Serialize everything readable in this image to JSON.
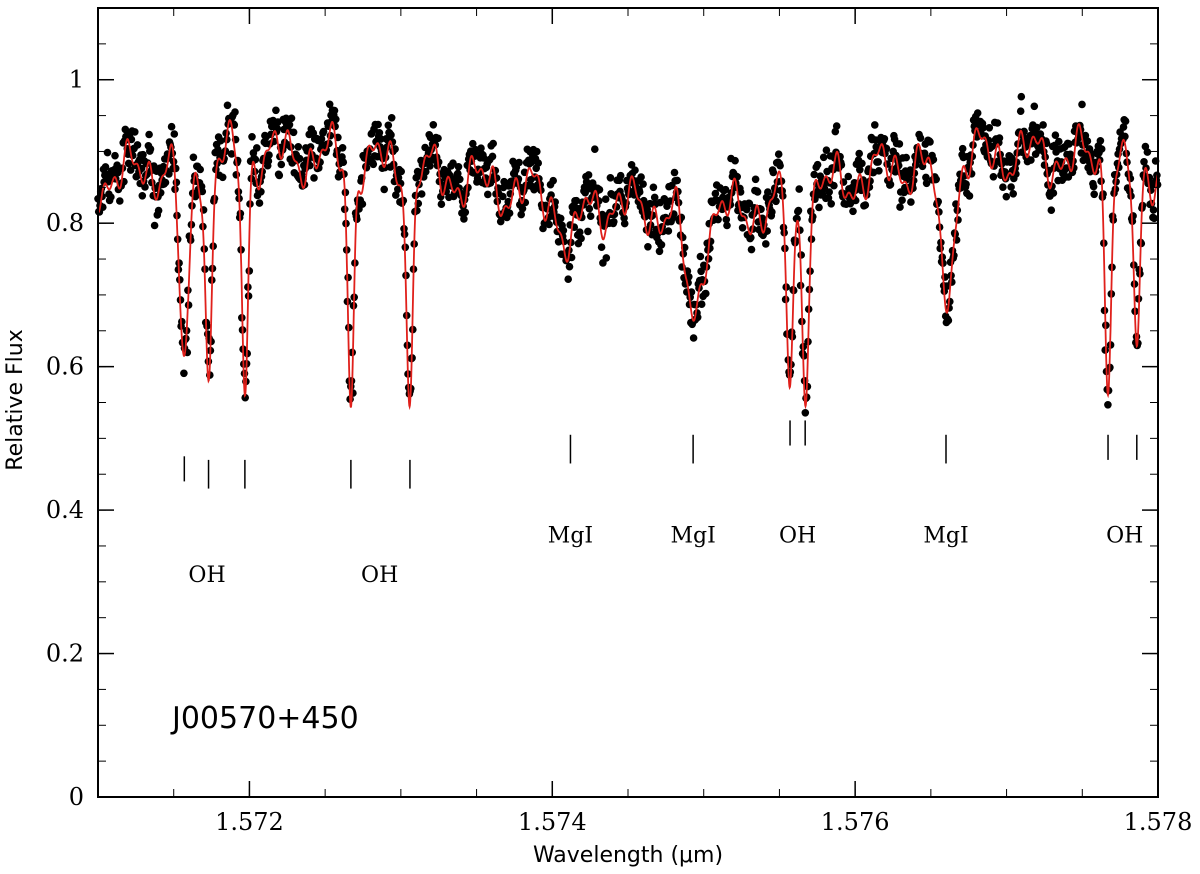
{
  "chart_data": {
    "type": "scatter",
    "title": "",
    "xlabel": "Wavelength (μm)",
    "ylabel": "Relative Flux",
    "xlim": [
      1.571,
      1.578
    ],
    "ylim": [
      0,
      1.1
    ],
    "grid": false,
    "x_ticks": [
      {
        "value": 1.572,
        "label": "1.572"
      },
      {
        "value": 1.574,
        "label": "1.574"
      },
      {
        "value": 1.576,
        "label": "1.576"
      },
      {
        "value": 1.578,
        "label": "1.578"
      }
    ],
    "y_ticks": [
      {
        "value": 0,
        "label": "0"
      },
      {
        "value": 0.2,
        "label": "0.2"
      },
      {
        "value": 0.4,
        "label": "0.4"
      },
      {
        "value": 0.6,
        "label": "0.6"
      },
      {
        "value": 0.8,
        "label": "0.8"
      },
      {
        "value": 1,
        "label": "1"
      }
    ],
    "annotation": "J00570+450",
    "continuum": 0.86,
    "absorption_lines": [
      {
        "species": "OH",
        "center": 1.57157,
        "depth": 0.3,
        "width": 3e-05,
        "mark_top": 0.475,
        "mark_bottom": 0.44
      },
      {
        "species": "OH",
        "center": 1.57173,
        "depth": 0.31,
        "width": 2e-05,
        "mark_top": 0.47,
        "mark_bottom": 0.43
      },
      {
        "species": "OH",
        "center": 1.57197,
        "depth": 0.32,
        "width": 2e-05,
        "mark_top": 0.47,
        "mark_bottom": 0.43
      },
      {
        "species": "OH",
        "center": 1.57267,
        "depth": 0.33,
        "width": 2e-05,
        "mark_top": 0.47,
        "mark_bottom": 0.43
      },
      {
        "species": "OH",
        "center": 1.57306,
        "depth": 0.32,
        "width": 2e-05,
        "mark_top": 0.47,
        "mark_bottom": 0.43
      },
      {
        "species": "MgI",
        "center": 1.57412,
        "depth": 0.07,
        "width": 5e-05,
        "mark_top": 0.505,
        "mark_bottom": 0.465
      },
      {
        "species": "MgI",
        "center": 1.57493,
        "depth": 0.15,
        "width": 5e-05,
        "mark_top": 0.505,
        "mark_bottom": 0.465
      },
      {
        "species": "OH",
        "center": 1.57557,
        "depth": 0.27,
        "width": 2e-05,
        "mark_top": 0.525,
        "mark_bottom": 0.49
      },
      {
        "species": "OH",
        "center": 1.57567,
        "depth": 0.26,
        "width": 2e-05,
        "mark_top": 0.525,
        "mark_bottom": 0.49
      },
      {
        "species": "MgI",
        "center": 1.5766,
        "depth": 0.18,
        "width": 5e-05,
        "mark_top": 0.505,
        "mark_bottom": 0.465
      },
      {
        "species": "OH",
        "center": 1.57767,
        "depth": 0.28,
        "width": 2e-05,
        "mark_top": 0.505,
        "mark_bottom": 0.47
      },
      {
        "species": "OH",
        "center": 1.57786,
        "depth": 0.28,
        "width": 2e-05,
        "mark_top": 0.505,
        "mark_bottom": 0.47
      }
    ],
    "line_labels": [
      {
        "text": "OH",
        "x": 1.57172,
        "y": 0.3
      },
      {
        "text": "OH",
        "x": 1.57286,
        "y": 0.3
      },
      {
        "text": "MgI",
        "x": 1.57412,
        "y": 0.355
      },
      {
        "text": "MgI",
        "x": 1.57493,
        "y": 0.355
      },
      {
        "text": "OH",
        "x": 1.57562,
        "y": 0.355
      },
      {
        "text": "MgI",
        "x": 1.5766,
        "y": 0.355
      },
      {
        "text": "OH",
        "x": 1.57778,
        "y": 0.355
      }
    ],
    "series": [
      {
        "name": "observed",
        "style": "points",
        "color": "#000000",
        "sampling": 4.5e-06,
        "noise": 0.03
      },
      {
        "name": "model",
        "style": "line",
        "color": "#e0201b",
        "sampling": 2e-06
      }
    ]
  }
}
